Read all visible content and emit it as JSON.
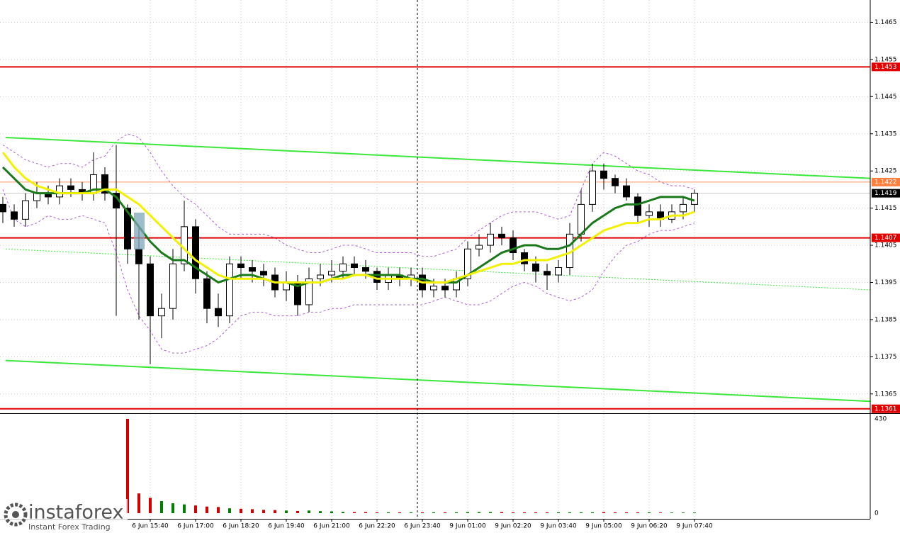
{
  "chart_data": {
    "type": "candlestick",
    "x": [
      null,
      null,
      null,
      null,
      null,
      null,
      null,
      null,
      null,
      null,
      null,
      null,
      null,
      "6 Jun 15:40",
      null,
      null,
      null,
      "6 Jun 17:00",
      null,
      null,
      null,
      "6 Jun 18:20",
      null,
      null,
      null,
      "6 Jun 19:40",
      null,
      null,
      null,
      "6 Jun 21:00",
      null,
      null,
      null,
      "6 Jun 22:20",
      null,
      null,
      null,
      "6 Jun 23:40",
      null,
      null,
      null,
      "9 Jun 01:00",
      null,
      null,
      null,
      "9 Jun 02:20",
      null,
      null,
      null,
      "9 Jun 03:40",
      null,
      null,
      null,
      "9 Jun 05:00",
      null,
      null,
      null,
      "9 Jun 06:20",
      null,
      null,
      null,
      "9 Jun 07:40"
    ],
    "open": [
      1.1416,
      1.1414,
      1.1412,
      1.1417,
      1.1419,
      1.1418,
      1.1421,
      1.142,
      1.1419,
      1.1424,
      1.1419,
      1.1415,
      1.1404,
      1.14,
      1.1386,
      1.1388,
      1.14,
      1.141,
      1.1396,
      1.1388,
      1.1386,
      1.14,
      1.1399,
      1.1398,
      1.1397,
      1.1393,
      1.1395,
      1.1389,
      1.1396,
      1.1397,
      1.1398,
      1.14,
      1.1399,
      1.1398,
      1.1395,
      1.1397,
      1.1396,
      1.1397,
      1.1393,
      1.1394,
      1.1393,
      1.1396,
      1.1404,
      1.1405,
      1.1408,
      1.1407,
      1.1403,
      1.14,
      1.1398,
      1.1397,
      1.1399,
      1.1408,
      1.1416,
      1.1425,
      1.1423,
      1.1421,
      1.1418,
      1.1413,
      1.1414,
      1.1412,
      1.1414,
      1.1416
    ],
    "high": [
      1.1418,
      1.1416,
      1.1419,
      1.1422,
      1.1421,
      1.1423,
      1.1423,
      1.1422,
      1.143,
      1.1426,
      1.1432,
      1.1416,
      1.141,
      1.1402,
      1.1392,
      1.1404,
      1.1417,
      1.1412,
      1.1398,
      1.1392,
      1.1402,
      1.1402,
      1.1401,
      1.14,
      1.1399,
      1.1398,
      1.1397,
      1.1399,
      1.14,
      1.1401,
      1.1402,
      1.1402,
      1.1401,
      1.1399,
      1.1399,
      1.1399,
      1.1399,
      1.1399,
      1.1396,
      1.1396,
      1.1398,
      1.1406,
      1.1408,
      1.1411,
      1.141,
      1.1409,
      1.1404,
      1.1402,
      1.14,
      1.1401,
      1.1411,
      1.142,
      1.1427,
      1.1427,
      1.1424,
      1.1423,
      1.1419,
      1.1416,
      1.1416,
      1.1416,
      1.1418,
      1.142
    ],
    "low": [
      1.1411,
      1.141,
      1.141,
      1.1415,
      1.1416,
      1.1416,
      1.1418,
      1.1417,
      1.1417,
      1.1417,
      1.1386,
      1.14,
      1.1385,
      1.1373,
      1.138,
      1.1385,
      1.1398,
      1.1392,
      1.1384,
      1.1383,
      1.1384,
      1.1396,
      1.1395,
      1.1394,
      1.1391,
      1.139,
      1.1386,
      1.1387,
      1.1394,
      1.1395,
      1.1396,
      1.1397,
      1.1396,
      1.1393,
      1.1393,
      1.1394,
      1.1394,
      1.1391,
      1.1391,
      1.1391,
      1.1391,
      1.1394,
      1.1402,
      1.1403,
      1.1405,
      1.1401,
      1.1398,
      1.1395,
      1.1393,
      1.1395,
      1.1397,
      1.1406,
      1.1414,
      1.142,
      1.1419,
      1.1417,
      1.1411,
      1.141,
      1.141,
      1.1411,
      1.1412,
      1.1414
    ],
    "close": [
      1.1414,
      1.1412,
      1.1417,
      1.1419,
      1.1418,
      1.1421,
      1.142,
      1.1419,
      1.1424,
      1.1419,
      1.1415,
      1.1404,
      1.14,
      1.1386,
      1.1388,
      1.14,
      1.141,
      1.1396,
      1.1388,
      1.1386,
      1.14,
      1.1399,
      1.1398,
      1.1397,
      1.1393,
      1.1395,
      1.1389,
      1.1396,
      1.1397,
      1.1398,
      1.14,
      1.1399,
      1.1398,
      1.1395,
      1.1397,
      1.1396,
      1.1397,
      1.1393,
      1.1394,
      1.1393,
      1.1396,
      1.1404,
      1.1405,
      1.1408,
      1.1407,
      1.1403,
      1.14,
      1.1398,
      1.1397,
      1.1399,
      1.1408,
      1.1416,
      1.1425,
      1.1423,
      1.1421,
      1.1418,
      1.1413,
      1.1414,
      1.1412,
      1.1414,
      1.1416,
      1.1419
    ],
    "up_color": "#ffffff",
    "down_color": "#000000",
    "ylim": [
      1.136,
      1.1471
    ],
    "yticks": [
      1.1465,
      1.1455,
      1.1445,
      1.1435,
      1.1425,
      1.1415,
      1.1405,
      1.1395,
      1.1385,
      1.1375,
      1.1365
    ],
    "grid": true,
    "moving_averages": [
      {
        "color": "#1a7a1a",
        "values": [
          1.1426,
          1.1423,
          1.142,
          1.1419,
          1.1419,
          1.1419,
          1.1419,
          1.1419,
          1.142,
          1.142,
          1.1418,
          1.1414,
          1.141,
          1.1406,
          1.1403,
          1.1401,
          1.1401,
          1.1399,
          1.1397,
          1.1395,
          1.1396,
          1.1397,
          1.1397,
          1.1396,
          1.1395,
          1.1395,
          1.1394,
          1.1395,
          1.1395,
          1.1396,
          1.1397,
          1.1397,
          1.1397,
          1.1397,
          1.1397,
          1.1397,
          1.1396,
          1.1396,
          1.1395,
          1.1395,
          1.1395,
          1.1397,
          1.1399,
          1.1401,
          1.1403,
          1.1404,
          1.1405,
          1.1405,
          1.1404,
          1.1404,
          1.1405,
          1.1408,
          1.1411,
          1.1413,
          1.1415,
          1.1416,
          1.1416,
          1.1417,
          1.1418,
          1.1418,
          1.1418,
          1.1417
        ]
      },
      {
        "color": "#f2f200",
        "values": [
          1.143,
          1.1426,
          1.1423,
          1.1421,
          1.142,
          1.1419,
          1.1419,
          1.1419,
          1.1419,
          1.142,
          1.142,
          1.1418,
          1.1416,
          1.1413,
          1.141,
          1.1407,
          1.1404,
          1.1401,
          1.1399,
          1.1397,
          1.1396,
          1.1396,
          1.1396,
          1.1396,
          1.1395,
          1.1395,
          1.1395,
          1.1395,
          1.1395,
          1.1396,
          1.1396,
          1.1397,
          1.1397,
          1.1396,
          1.1396,
          1.1396,
          1.1396,
          1.1395,
          1.1395,
          1.1395,
          1.1396,
          1.1397,
          1.1398,
          1.1399,
          1.14,
          1.14,
          1.1401,
          1.1401,
          1.1401,
          1.1402,
          1.1403,
          1.1405,
          1.1407,
          1.1409,
          1.141,
          1.1411,
          1.1411,
          1.1412,
          1.1412,
          1.1413,
          1.1413,
          1.1414
        ]
      }
    ],
    "bands": {
      "color": "#b05cd6",
      "upper": [
        1.1432,
        1.143,
        1.1428,
        1.1427,
        1.1426,
        1.1427,
        1.1427,
        1.1426,
        1.1428,
        1.1429,
        1.1433,
        1.1435,
        1.1434,
        1.143,
        1.1425,
        1.1421,
        1.1418,
        1.1416,
        1.1413,
        1.141,
        1.1408,
        1.1408,
        1.1408,
        1.1408,
        1.1407,
        1.1405,
        1.1404,
        1.1403,
        1.1403,
        1.1404,
        1.1405,
        1.1405,
        1.1404,
        1.1403,
        1.1403,
        1.1403,
        1.1403,
        1.1402,
        1.1402,
        1.1403,
        1.1404,
        1.1407,
        1.1409,
        1.1411,
        1.1413,
        1.1414,
        1.1414,
        1.1414,
        1.1413,
        1.1412,
        1.1413,
        1.142,
        1.1427,
        1.143,
        1.1429,
        1.1427,
        1.1425,
        1.1424,
        1.1422,
        1.1421,
        1.1421,
        1.142
      ],
      "lower": [
        1.142,
        1.1412,
        1.141,
        1.1411,
        1.1413,
        1.1412,
        1.1412,
        1.1413,
        1.1412,
        1.1411,
        1.1403,
        1.1393,
        1.1386,
        1.1382,
        1.1377,
        1.1376,
        1.1376,
        1.1377,
        1.1378,
        1.138,
        1.1383,
        1.1386,
        1.1387,
        1.1387,
        1.1386,
        1.1386,
        1.1386,
        1.1387,
        1.1387,
        1.1388,
        1.1388,
        1.1389,
        1.1389,
        1.1389,
        1.1389,
        1.1389,
        1.1389,
        1.1389,
        1.139,
        1.1391,
        1.139,
        1.1389,
        1.1389,
        1.139,
        1.1392,
        1.1394,
        1.1395,
        1.1394,
        1.1392,
        1.1391,
        1.139,
        1.1391,
        1.1393,
        1.1398,
        1.1402,
        1.1405,
        1.1406,
        1.1408,
        1.1409,
        1.1409,
        1.141,
        1.1411
      ]
    },
    "trendlines": [
      {
        "start": 1.1434,
        "end": 1.1423,
        "color": "#3be83b",
        "dashed": false
      },
      {
        "start": 1.1404,
        "end": 1.1393,
        "color": "#3be83b",
        "dashed": true
      },
      {
        "start": 1.1374,
        "end": 1.1363,
        "color": "#3be83b",
        "dashed": false
      }
    ],
    "levels": [
      {
        "value": 1.1453,
        "color": "#e00000",
        "box": "#e00000",
        "width": 2
      },
      {
        "value": 1.1422,
        "color": "#ff9060",
        "box": "#ff7f3f",
        "width": 1
      },
      {
        "value": 1.1419,
        "color": "#c8c8c8",
        "box": "#000000",
        "width": 1
      },
      {
        "value": 1.1407,
        "color": "#e00000",
        "box": "#e00000",
        "width": 2
      },
      {
        "value": 1.1361,
        "color": "#e00000",
        "box": "#e00000",
        "width": 2
      }
    ],
    "volume": {
      "values": [
        null,
        null,
        null,
        null,
        null,
        null,
        null,
        null,
        null,
        null,
        null,
        430,
        90,
        70,
        55,
        45,
        40,
        35,
        30,
        28,
        22,
        20,
        18,
        15,
        14,
        12,
        10,
        12,
        9,
        8,
        6,
        5,
        5,
        4,
        4,
        4,
        4,
        4,
        4,
        4,
        4,
        5,
        5,
        5,
        5,
        4,
        4,
        4,
        4,
        4,
        4,
        4,
        4,
        5,
        4,
        4,
        4,
        4,
        3,
        3,
        3,
        3
      ],
      "up_color": "#008000",
      "down_color": "#d00000",
      "ylim": [
        0,
        446
      ],
      "yticks": [
        430,
        0
      ]
    }
  },
  "watermark": {
    "brand": "instaforex",
    "tagline": "Instant Forex Trading"
  }
}
